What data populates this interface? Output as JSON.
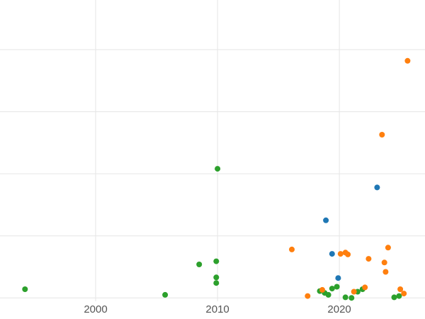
{
  "figure": {
    "background": "#ffffff",
    "grid_color": "#e5e5e5",
    "tick_label_color": "#555555"
  },
  "chart_data": {
    "type": "scatter",
    "title": "",
    "xlabel": "",
    "ylabel": "",
    "grid": true,
    "legend": "none",
    "marker_radius": 4,
    "xlim": [
      1992.15,
      2027.03
    ],
    "ylim": [
      -0.34,
      4.8
    ],
    "x_ticks": [
      {
        "value": 2000,
        "label": "2000"
      },
      {
        "value": 2010,
        "label": "2010"
      },
      {
        "value": 2020,
        "label": "2020"
      }
    ],
    "y_gridlines": [
      0,
      1,
      2,
      3,
      4
    ],
    "series": [
      {
        "name": "green",
        "color": "#2ca02c",
        "points": [
          [
            1994.2,
            0.14
          ],
          [
            2005.7,
            0.05
          ],
          [
            2008.5,
            0.54
          ],
          [
            2009.9,
            0.59
          ],
          [
            2010.0,
            2.08
          ],
          [
            2009.9,
            0.33
          ],
          [
            2009.9,
            0.24
          ],
          [
            2018.4,
            0.11
          ],
          [
            2018.8,
            0.08
          ],
          [
            2019.1,
            0.05
          ],
          [
            2019.4,
            0.15
          ],
          [
            2019.8,
            0.18
          ],
          [
            2020.5,
            0.01
          ],
          [
            2021.0,
            0.0
          ],
          [
            2021.5,
            0.1
          ],
          [
            2021.9,
            0.14
          ],
          [
            2024.5,
            0.01
          ],
          [
            2024.9,
            0.03
          ]
        ]
      },
      {
        "name": "orange",
        "color": "#ff7f0e",
        "points": [
          [
            2016.1,
            0.78
          ],
          [
            2017.4,
            0.03
          ],
          [
            2018.6,
            0.13
          ],
          [
            2020.1,
            0.71
          ],
          [
            2020.5,
            0.73
          ],
          [
            2020.7,
            0.7
          ],
          [
            2021.2,
            0.1
          ],
          [
            2022.1,
            0.17
          ],
          [
            2022.4,
            0.63
          ],
          [
            2023.5,
            2.63
          ],
          [
            2023.7,
            0.57
          ],
          [
            2023.8,
            0.42
          ],
          [
            2024.0,
            0.81
          ],
          [
            2025.0,
            0.14
          ],
          [
            2025.3,
            0.07
          ],
          [
            2025.6,
            3.82
          ]
        ]
      },
      {
        "name": "blue",
        "color": "#1f77b4",
        "points": [
          [
            2018.9,
            1.25
          ],
          [
            2019.4,
            0.71
          ],
          [
            2019.9,
            0.32
          ],
          [
            2023.1,
            1.78
          ]
        ]
      }
    ]
  }
}
